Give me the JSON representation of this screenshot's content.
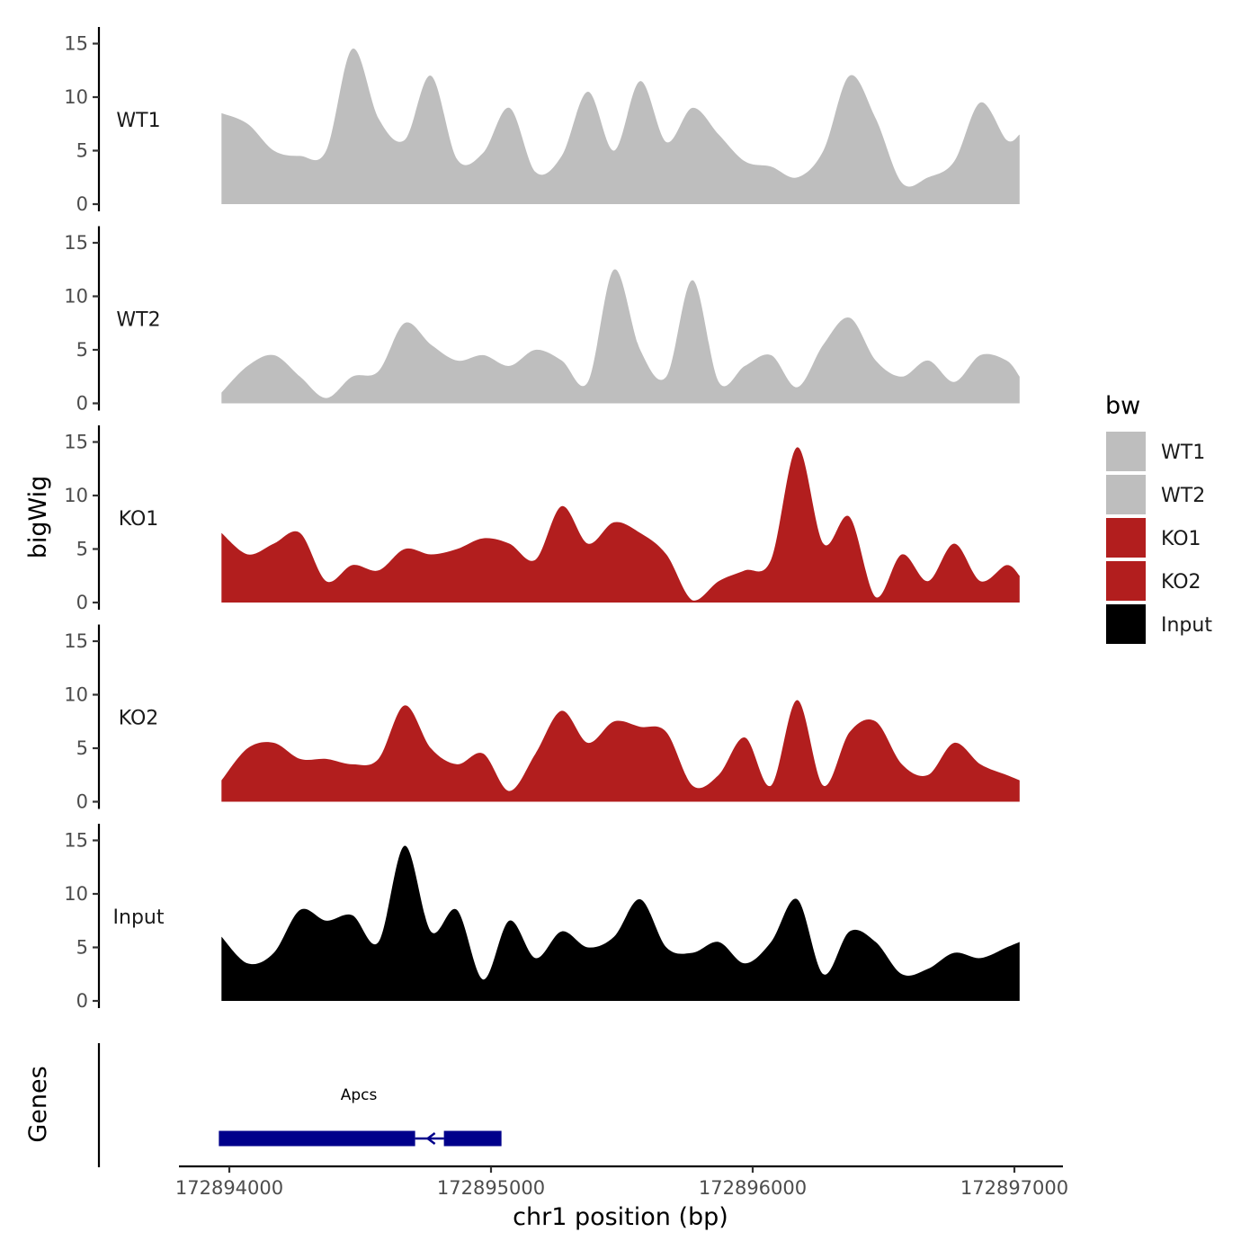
{
  "chart_data": {
    "type": "area",
    "ylabel": "bigWig",
    "xlabel": "chr1 position (bp)",
    "xlim": [
      172893850,
      172897190
    ],
    "ylim": [
      0,
      16.5
    ],
    "y_ticks": [
      0,
      5,
      10,
      15
    ],
    "x_ticks": [
      172894000,
      172895000,
      172896000,
      172897000
    ],
    "x_tick_labels": [
      "172894000",
      "172895000",
      "172896000",
      "172897000"
    ],
    "legend": {
      "title": "bw",
      "position": "right",
      "entries": [
        {
          "label": "WT1",
          "color": "#bebebe"
        },
        {
          "label": "WT2",
          "color": "#bebebe"
        },
        {
          "label": "KO1",
          "color": "#b21e1e"
        },
        {
          "label": "KO2",
          "color": "#b21e1e"
        },
        {
          "label": "Input",
          "color": "#000000"
        }
      ]
    },
    "tracks_x": [
      172893970,
      172894070,
      172894170,
      172894270,
      172894370,
      172894470,
      172894570,
      172894670,
      172894770,
      172894870,
      172894970,
      172895070,
      172895170,
      172895270,
      172895370,
      172895470,
      172895570,
      172895670,
      172895770,
      172895870,
      172895970,
      172896070,
      172896170,
      172896270,
      172896370,
      172896470,
      172896570,
      172896670,
      172896770,
      172896870,
      172896970,
      172897020
    ],
    "series": [
      {
        "name": "WT1",
        "color": "#bebebe",
        "values": [
          8.5,
          7.5,
          5.0,
          4.5,
          5.0,
          14.5,
          8.0,
          6.0,
          12.0,
          4.2,
          4.8,
          9.0,
          3.0,
          4.5,
          10.5,
          5.0,
          11.5,
          5.8,
          9.0,
          6.5,
          4.0,
          3.5,
          2.5,
          5.0,
          12.0,
          8.0,
          2.0,
          2.5,
          4.0,
          9.5,
          6.0,
          6.5
        ]
      },
      {
        "name": "WT2",
        "color": "#bebebe",
        "values": [
          1.0,
          3.5,
          4.5,
          2.5,
          0.5,
          2.5,
          3.0,
          7.5,
          5.5,
          4.0,
          4.5,
          3.5,
          5.0,
          4.0,
          2.0,
          12.5,
          5.0,
          2.5,
          11.5,
          2.0,
          3.5,
          4.5,
          1.5,
          5.5,
          8.0,
          4.0,
          2.5,
          4.0,
          2.0,
          4.5,
          4.0,
          2.5
        ]
      },
      {
        "name": "KO1",
        "color": "#b21e1e",
        "values": [
          6.5,
          4.5,
          5.5,
          6.5,
          2.0,
          3.5,
          3.0,
          5.0,
          4.5,
          5.0,
          6.0,
          5.5,
          4.0,
          9.0,
          5.5,
          7.5,
          6.5,
          4.5,
          0.2,
          2.0,
          3.0,
          4.0,
          14.5,
          5.5,
          8.0,
          0.5,
          4.5,
          2.0,
          5.5,
          2.0,
          3.5,
          2.5
        ]
      },
      {
        "name": "KO2",
        "color": "#b21e1e",
        "values": [
          2.0,
          5.0,
          5.5,
          4.0,
          4.0,
          3.5,
          4.0,
          9.0,
          5.0,
          3.5,
          4.5,
          1.0,
          4.5,
          8.5,
          5.5,
          7.5,
          7.0,
          6.5,
          1.5,
          2.5,
          6.0,
          1.5,
          9.5,
          1.5,
          6.5,
          7.5,
          3.5,
          2.5,
          5.5,
          3.5,
          2.5,
          2.0
        ]
      },
      {
        "name": "Input",
        "color": "#000000",
        "values": [
          6.0,
          3.5,
          4.5,
          8.5,
          7.5,
          8.0,
          5.5,
          14.5,
          6.5,
          8.5,
          2.0,
          7.5,
          4.0,
          6.5,
          5.0,
          6.0,
          9.5,
          5.0,
          4.5,
          5.5,
          3.5,
          5.5,
          9.5,
          2.5,
          6.5,
          5.5,
          2.5,
          3.0,
          4.5,
          4.0,
          5.0,
          5.5
        ]
      }
    ],
    "genes_track": {
      "label": "Genes",
      "gene_name": "Apcs",
      "strand": "-",
      "exons": [
        [
          172893960,
          172894710
        ],
        [
          172894820,
          172895040
        ]
      ],
      "intron": [
        172894710,
        172894820
      ]
    }
  }
}
